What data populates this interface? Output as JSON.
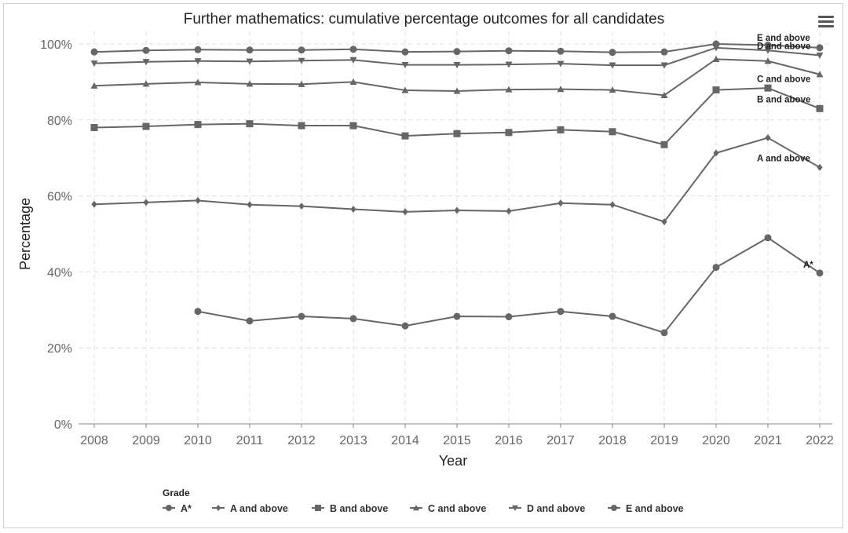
{
  "chart_data": {
    "type": "line",
    "title": "Further mathematics: cumulative percentage outcomes for all candidates",
    "xlabel": "Year",
    "ylabel": "Percentage",
    "x": [
      2008,
      2009,
      2010,
      2011,
      2012,
      2013,
      2014,
      2015,
      2016,
      2017,
      2018,
      2019,
      2020,
      2021,
      2022
    ],
    "ylim": [
      0,
      100
    ],
    "yticks": [
      "0%",
      "20%",
      "40%",
      "60%",
      "80%",
      "100%"
    ],
    "grid": true,
    "legend": {
      "title": "Grade",
      "placement": "bottom-left"
    },
    "line_color": "#666666",
    "series": [
      {
        "name": "A*",
        "marker": "circle",
        "end_label": "A*",
        "values": [
          null,
          null,
          29.6,
          27.1,
          28.3,
          27.7,
          25.8,
          28.3,
          28.2,
          29.6,
          28.3,
          24.0,
          41.2,
          49.0,
          39.7
        ]
      },
      {
        "name": "A and above",
        "marker": "diamond",
        "end_label": "A and above",
        "values": [
          57.8,
          58.3,
          58.8,
          57.7,
          57.3,
          56.5,
          55.8,
          56.2,
          56.0,
          58.1,
          57.7,
          53.2,
          71.3,
          75.3,
          67.5
        ]
      },
      {
        "name": "B and above",
        "marker": "square",
        "end_label": "B and above",
        "values": [
          78.0,
          78.3,
          78.8,
          79.0,
          78.5,
          78.5,
          75.8,
          76.4,
          76.7,
          77.4,
          76.9,
          73.5,
          87.9,
          88.4,
          83.0
        ]
      },
      {
        "name": "C and above",
        "marker": "triangle-up",
        "end_label": "C and above",
        "values": [
          89.0,
          89.5,
          89.9,
          89.5,
          89.4,
          90.0,
          87.8,
          87.6,
          88.0,
          88.1,
          87.9,
          86.5,
          96.0,
          95.5,
          92.0
        ]
      },
      {
        "name": "D and above",
        "marker": "triangle-down",
        "end_label": "D and above",
        "values": [
          94.9,
          95.3,
          95.5,
          95.4,
          95.6,
          95.8,
          94.5,
          94.5,
          94.6,
          94.8,
          94.4,
          94.4,
          99.0,
          98.3,
          97.0
        ]
      },
      {
        "name": "E and above",
        "marker": "circle",
        "end_label": "E and above",
        "values": [
          97.9,
          98.3,
          98.5,
          98.4,
          98.4,
          98.6,
          97.9,
          98.0,
          98.2,
          98.1,
          97.8,
          97.9,
          100.0,
          99.7,
          99.0
        ]
      }
    ]
  }
}
